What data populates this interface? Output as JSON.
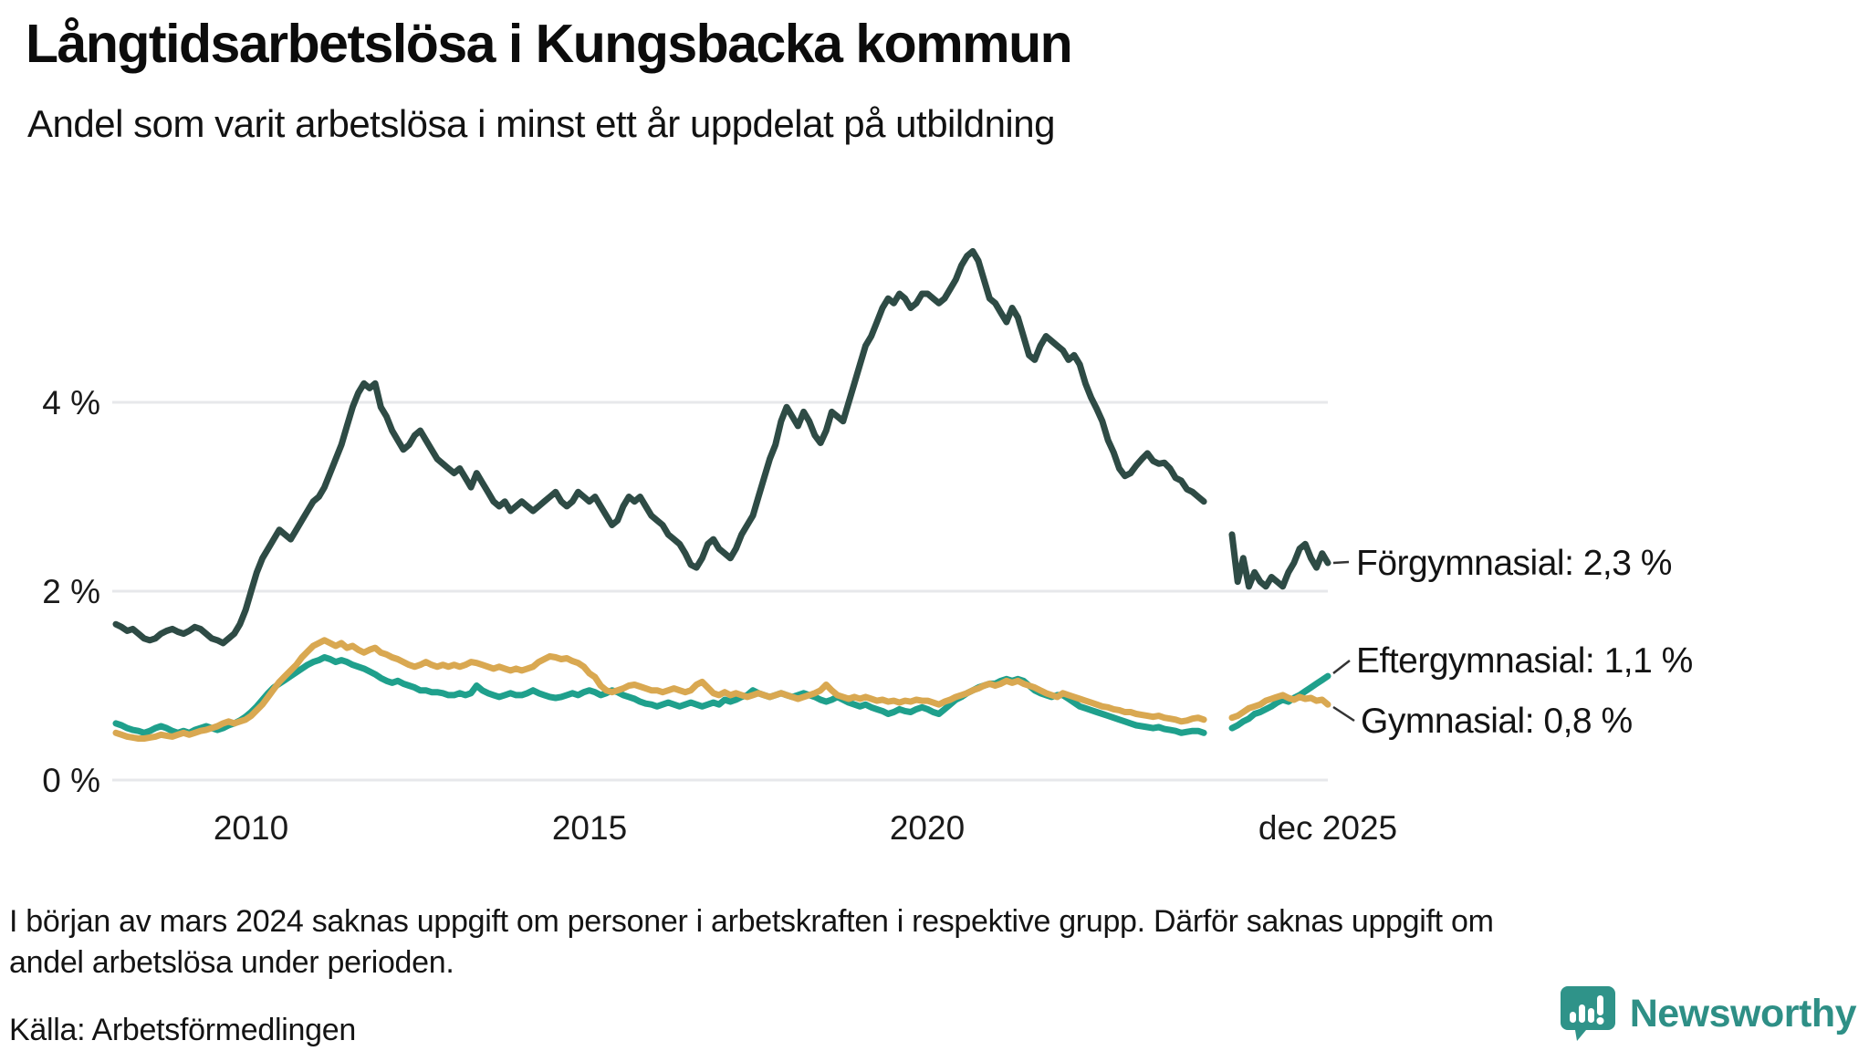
{
  "header": {
    "title": "Långtidsarbetslösa i Kungsbacka kommun",
    "subtitle": "Andel som varit arbetslösa i minst ett år uppdelat på utbildning"
  },
  "chart_data": {
    "type": "line",
    "title": "Långtidsarbetslösa i Kungsbacka kommun",
    "subtitle": "Andel som varit arbetslösa i minst ett år uppdelat på utbildning",
    "unit": "%",
    "x_start_year": 2008,
    "x_step_months": 1,
    "x_end_label": "dec 2025",
    "x_axis": {
      "ticks": [
        {
          "label": "2010",
          "t": 2010.0
        },
        {
          "label": "2015",
          "t": 2015.0
        },
        {
          "label": "2020",
          "t": 2020.0
        },
        {
          "label": "dec 2025",
          "t": 2025.9167
        }
      ]
    },
    "y_axis": {
      "ticks": [
        {
          "label": "0 %",
          "v": 0
        },
        {
          "label": "2 %",
          "v": 2
        },
        {
          "label": "4 %",
          "v": 4
        }
      ],
      "range": [
        0,
        5.8
      ],
      "grid": true
    },
    "data_gap": "mars 2024 (värden saknas några månader)",
    "series": [
      {
        "name": "Förgymnasial",
        "color": "#2E4B45",
        "end_label": "Förgymnasial: 2,3 %",
        "end_value": 2.3,
        "values": [
          1.65,
          1.62,
          1.58,
          1.6,
          1.55,
          1.5,
          1.48,
          1.5,
          1.55,
          1.58,
          1.6,
          1.57,
          1.55,
          1.58,
          1.62,
          1.6,
          1.55,
          1.5,
          1.48,
          1.45,
          1.5,
          1.55,
          1.65,
          1.8,
          2.0,
          2.2,
          2.35,
          2.45,
          2.55,
          2.65,
          2.6,
          2.55,
          2.65,
          2.75,
          2.85,
          2.95,
          3.0,
          3.1,
          3.25,
          3.4,
          3.55,
          3.75,
          3.95,
          4.1,
          4.2,
          4.15,
          4.2,
          3.95,
          3.85,
          3.7,
          3.6,
          3.5,
          3.55,
          3.65,
          3.7,
          3.6,
          3.5,
          3.4,
          3.35,
          3.3,
          3.25,
          3.3,
          3.2,
          3.1,
          3.25,
          3.15,
          3.05,
          2.95,
          2.9,
          2.95,
          2.85,
          2.9,
          2.95,
          2.9,
          2.85,
          2.9,
          2.95,
          3.0,
          3.05,
          2.95,
          2.9,
          2.95,
          3.05,
          3.0,
          2.95,
          3.0,
          2.9,
          2.8,
          2.7,
          2.75,
          2.9,
          3.0,
          2.95,
          3.0,
          2.9,
          2.8,
          2.75,
          2.7,
          2.6,
          2.55,
          2.5,
          2.4,
          2.28,
          2.25,
          2.35,
          2.5,
          2.55,
          2.45,
          2.4,
          2.35,
          2.45,
          2.6,
          2.7,
          2.8,
          3.0,
          3.2,
          3.4,
          3.55,
          3.8,
          3.95,
          3.85,
          3.75,
          3.9,
          3.8,
          3.65,
          3.57,
          3.7,
          3.9,
          3.85,
          3.8,
          4.0,
          4.2,
          4.4,
          4.6,
          4.7,
          4.85,
          5.0,
          5.1,
          5.05,
          5.15,
          5.1,
          5.0,
          5.05,
          5.15,
          5.15,
          5.1,
          5.05,
          5.1,
          5.2,
          5.3,
          5.45,
          5.55,
          5.6,
          5.5,
          5.3,
          5.1,
          5.05,
          4.95,
          4.85,
          5.0,
          4.9,
          4.7,
          4.5,
          4.45,
          4.6,
          4.7,
          4.65,
          4.6,
          4.55,
          4.45,
          4.5,
          4.4,
          4.2,
          4.05,
          3.93,
          3.8,
          3.6,
          3.47,
          3.3,
          3.22,
          3.25,
          3.33,
          3.4,
          3.46,
          3.38,
          3.35,
          3.36,
          3.3,
          3.2,
          3.17,
          3.08,
          3.05,
          3.0,
          2.95,
          null,
          null,
          null,
          null,
          2.6,
          2.1,
          2.35,
          2.05,
          2.2,
          2.1,
          2.05,
          2.15,
          2.1,
          2.05,
          2.2,
          2.3,
          2.45,
          2.5,
          2.35,
          2.25,
          2.4,
          2.3
        ]
      },
      {
        "name": "Eftergymnasial",
        "color": "#1FA08C",
        "end_label": "Eftergymnasial: 1,1 %",
        "end_value": 1.1,
        "values": [
          0.6,
          0.58,
          0.55,
          0.53,
          0.52,
          0.5,
          0.52,
          0.55,
          0.57,
          0.55,
          0.52,
          0.5,
          0.52,
          0.5,
          0.53,
          0.55,
          0.57,
          0.55,
          0.53,
          0.55,
          0.58,
          0.6,
          0.63,
          0.67,
          0.72,
          0.78,
          0.85,
          0.92,
          0.98,
          1.02,
          1.06,
          1.1,
          1.14,
          1.18,
          1.22,
          1.25,
          1.27,
          1.3,
          1.28,
          1.25,
          1.27,
          1.25,
          1.22,
          1.2,
          1.18,
          1.15,
          1.12,
          1.08,
          1.05,
          1.03,
          1.05,
          1.02,
          1.0,
          0.98,
          0.95,
          0.95,
          0.93,
          0.93,
          0.92,
          0.9,
          0.9,
          0.92,
          0.9,
          0.92,
          1.0,
          0.95,
          0.92,
          0.9,
          0.88,
          0.9,
          0.92,
          0.9,
          0.9,
          0.92,
          0.95,
          0.92,
          0.9,
          0.88,
          0.87,
          0.88,
          0.9,
          0.92,
          0.9,
          0.93,
          0.95,
          0.93,
          0.9,
          0.92,
          0.95,
          0.93,
          0.9,
          0.88,
          0.86,
          0.83,
          0.81,
          0.8,
          0.78,
          0.8,
          0.82,
          0.8,
          0.78,
          0.8,
          0.82,
          0.8,
          0.78,
          0.8,
          0.82,
          0.8,
          0.85,
          0.83,
          0.85,
          0.88,
          0.9,
          0.95,
          0.92,
          0.9,
          0.88,
          0.9,
          0.92,
          0.9,
          0.88,
          0.9,
          0.92,
          0.9,
          0.88,
          0.85,
          0.83,
          0.85,
          0.88,
          0.85,
          0.82,
          0.8,
          0.78,
          0.8,
          0.77,
          0.75,
          0.73,
          0.7,
          0.72,
          0.75,
          0.73,
          0.72,
          0.75,
          0.77,
          0.75,
          0.72,
          0.7,
          0.75,
          0.8,
          0.85,
          0.88,
          0.92,
          0.95,
          0.98,
          1.0,
          1.02,
          1.02,
          1.05,
          1.07,
          1.05,
          1.07,
          1.05,
          1.0,
          0.95,
          0.92,
          0.9,
          0.88,
          0.9,
          0.9,
          0.86,
          0.82,
          0.78,
          0.76,
          0.74,
          0.72,
          0.7,
          0.68,
          0.66,
          0.64,
          0.62,
          0.6,
          0.58,
          0.57,
          0.56,
          0.55,
          0.56,
          0.54,
          0.53,
          0.52,
          0.5,
          0.51,
          0.52,
          0.52,
          0.5,
          null,
          null,
          null,
          null,
          0.55,
          0.58,
          0.62,
          0.65,
          0.7,
          0.72,
          0.75,
          0.78,
          0.82,
          0.85,
          0.83,
          0.87,
          0.9,
          0.94,
          0.98,
          1.02,
          1.06,
          1.1
        ]
      },
      {
        "name": "Gymnasial",
        "color": "#D9A851",
        "end_label": "Gymnasial: 0,8 %",
        "end_value": 0.8,
        "values": [
          0.5,
          0.48,
          0.46,
          0.45,
          0.44,
          0.44,
          0.45,
          0.46,
          0.48,
          0.47,
          0.46,
          0.48,
          0.5,
          0.48,
          0.5,
          0.52,
          0.53,
          0.55,
          0.57,
          0.6,
          0.62,
          0.6,
          0.62,
          0.64,
          0.68,
          0.74,
          0.8,
          0.88,
          0.96,
          1.04,
          1.1,
          1.16,
          1.22,
          1.3,
          1.36,
          1.42,
          1.45,
          1.48,
          1.45,
          1.42,
          1.45,
          1.4,
          1.42,
          1.38,
          1.35,
          1.38,
          1.4,
          1.35,
          1.33,
          1.3,
          1.28,
          1.25,
          1.22,
          1.2,
          1.22,
          1.25,
          1.22,
          1.2,
          1.22,
          1.2,
          1.22,
          1.2,
          1.22,
          1.25,
          1.24,
          1.22,
          1.2,
          1.18,
          1.2,
          1.18,
          1.16,
          1.18,
          1.16,
          1.18,
          1.2,
          1.25,
          1.28,
          1.31,
          1.3,
          1.28,
          1.29,
          1.26,
          1.24,
          1.2,
          1.13,
          1.09,
          1.0,
          0.95,
          0.93,
          0.95,
          0.97,
          1.0,
          1.01,
          0.99,
          0.97,
          0.95,
          0.95,
          0.93,
          0.95,
          0.97,
          0.95,
          0.93,
          0.95,
          1.01,
          1.04,
          0.98,
          0.92,
          0.9,
          0.93,
          0.9,
          0.92,
          0.9,
          0.88,
          0.9,
          0.92,
          0.9,
          0.88,
          0.9,
          0.92,
          0.9,
          0.88,
          0.86,
          0.88,
          0.9,
          0.92,
          0.95,
          1.01,
          0.95,
          0.9,
          0.88,
          0.86,
          0.88,
          0.86,
          0.88,
          0.86,
          0.84,
          0.85,
          0.83,
          0.84,
          0.82,
          0.84,
          0.83,
          0.85,
          0.84,
          0.84,
          0.82,
          0.8,
          0.83,
          0.85,
          0.88,
          0.9,
          0.92,
          0.95,
          0.97,
          1.0,
          1.02,
          1.0,
          1.02,
          1.05,
          1.03,
          1.05,
          1.02,
          1.0,
          0.98,
          0.95,
          0.92,
          0.9,
          0.88,
          0.92,
          0.9,
          0.88,
          0.86,
          0.84,
          0.82,
          0.8,
          0.78,
          0.77,
          0.75,
          0.74,
          0.72,
          0.72,
          0.7,
          0.69,
          0.68,
          0.67,
          0.68,
          0.66,
          0.65,
          0.64,
          0.62,
          0.63,
          0.65,
          0.66,
          0.64,
          null,
          null,
          null,
          null,
          0.66,
          0.68,
          0.72,
          0.76,
          0.78,
          0.8,
          0.84,
          0.86,
          0.88,
          0.9,
          0.87,
          0.85,
          0.88,
          0.86,
          0.87,
          0.84,
          0.85,
          0.8
        ]
      }
    ]
  },
  "footnote": {
    "line1": "I början av mars 2024 saknas uppgift om personer i arbetskraften i respektive grupp. Därför saknas uppgift om",
    "line2": "andel arbetslösa under perioden."
  },
  "source": {
    "text": "Källa: Arbetsförmedlingen"
  },
  "branding": {
    "name": "Newsworthy",
    "accent_color": "#2e8f86",
    "icon": "bar-chart-speech-bubble"
  }
}
